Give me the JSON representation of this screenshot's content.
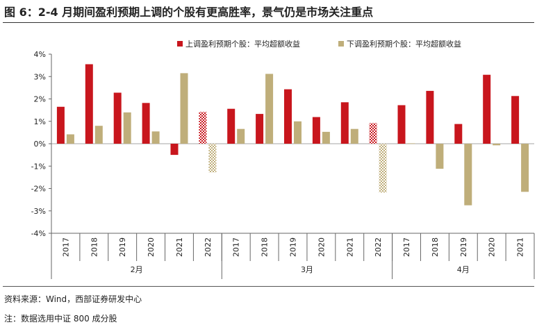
{
  "title": "图 6：2-4 月期间盈利预期上调的个股有更高胜率，景气仍是市场关注重点",
  "source": "资料来源：Wind，西部证券研发中心",
  "footnote": "注：数据选用中证 800 成分股",
  "colors": {
    "up": "#c8161d",
    "down": "#bfae7a",
    "axis": "#666666"
  },
  "chart_data": {
    "type": "bar",
    "y_unit": "%",
    "ylim": [
      -4,
      4
    ],
    "yticks": [
      "4%",
      "3%",
      "2%",
      "1%",
      "0%",
      "-1%",
      "-2%",
      "-3%",
      "-4%"
    ],
    "legend": [
      "上调盈利预期个股：平均超额收益",
      "下调盈利预期个股：平均超额收益"
    ],
    "groups": [
      {
        "label": "2月",
        "years": [
          "2017",
          "2018",
          "2019",
          "2020",
          "2021",
          "2022"
        ]
      },
      {
        "label": "3月",
        "years": [
          "2017",
          "2018",
          "2019",
          "2020",
          "2021",
          "2022"
        ]
      },
      {
        "label": "4月",
        "years": [
          "2017",
          "2018",
          "2019",
          "2020",
          "2021"
        ]
      }
    ],
    "categories": [
      "2017",
      "2018",
      "2019",
      "2020",
      "2021",
      "2022",
      "2017",
      "2018",
      "2019",
      "2020",
      "2021",
      "2022",
      "2017",
      "2018",
      "2019",
      "2020",
      "2021"
    ],
    "hatched": [
      false,
      false,
      false,
      false,
      false,
      true,
      false,
      false,
      false,
      false,
      false,
      true,
      false,
      false,
      false,
      false,
      false
    ],
    "series": [
      {
        "name": "上调盈利预期个股：平均超额收益",
        "values": [
          1.65,
          3.55,
          2.28,
          1.82,
          -0.5,
          1.42,
          1.56,
          1.33,
          2.43,
          1.19,
          1.85,
          0.92,
          1.72,
          2.36,
          0.88,
          3.08,
          2.13
        ]
      },
      {
        "name": "下调盈利预期个股：平均超额收益",
        "values": [
          0.42,
          0.8,
          1.4,
          0.55,
          3.15,
          -1.28,
          0.66,
          3.12,
          1.0,
          0.53,
          0.66,
          -2.18,
          0.02,
          -1.12,
          -2.75,
          -0.07,
          -2.15
        ]
      }
    ]
  }
}
